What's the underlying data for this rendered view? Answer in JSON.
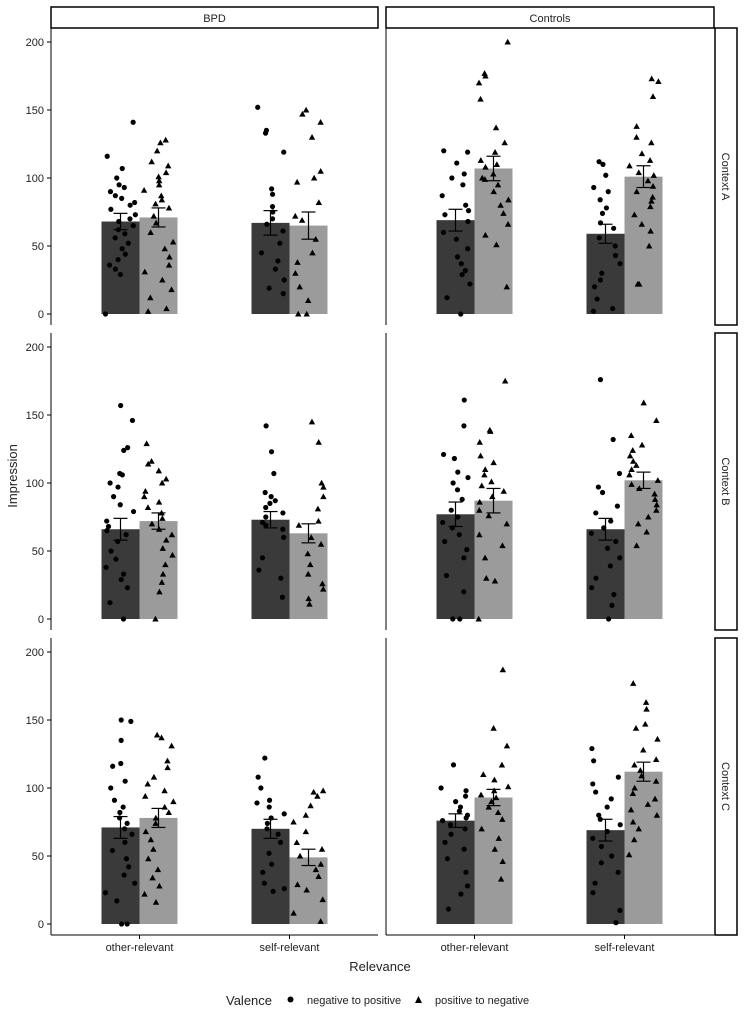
{
  "chart_data": {
    "type": "bar",
    "xlabel": "Relevance",
    "ylabel": "Impression",
    "ylim": [
      0,
      210
    ],
    "yticks": [
      0,
      50,
      100,
      150,
      200
    ],
    "categories": [
      "other-relevant",
      "self-relevant"
    ],
    "column_facets": [
      "BPD",
      "Controls"
    ],
    "row_facets": [
      "Context A",
      "Context B",
      "Context C"
    ],
    "legend": {
      "title": "Valence",
      "position": "bottom",
      "entries": [
        {
          "label": "negative to positive",
          "marker": "circle",
          "color": "#3a3a3a"
        },
        {
          "label": "positive to negative",
          "marker": "triangle",
          "color": "#9b9b9b"
        }
      ]
    },
    "grid": false,
    "error_bars": true,
    "panels": [
      {
        "row": "Context A",
        "col": "BPD",
        "bars": [
          {
            "category": "other-relevant",
            "valence": "negative to positive",
            "mean": 68,
            "se": 6,
            "points": [
              141,
              116,
              107,
              100,
              95,
              93,
              90,
              87,
              85,
              82,
              80,
              77,
              73,
              70,
              68,
              65,
              62,
              59,
              56,
              52,
              48,
              44,
              40,
              36,
              33,
              29,
              0
            ]
          },
          {
            "category": "other-relevant",
            "valence": "positive to negative",
            "mean": 71,
            "se": 7,
            "points": [
              128,
              126,
              120,
              112,
              109,
              104,
              101,
              98,
              95,
              91,
              87,
              84,
              81,
              78,
              72,
              67,
              60,
              53,
              48,
              42,
              36,
              31,
              25,
              18,
              12,
              4,
              2
            ]
          },
          {
            "category": "self-relevant",
            "valence": "negative to positive",
            "mean": 67,
            "se": 9,
            "points": [
              152,
              135,
              133,
              119,
              92,
              88,
              79,
              75,
              70,
              66,
              61,
              52,
              45,
              39,
              33,
              25,
              19,
              15
            ]
          },
          {
            "category": "self-relevant",
            "valence": "positive to negative",
            "mean": 65,
            "se": 10,
            "points": [
              150,
              147,
              141,
              130,
              105,
              100,
              97,
              82,
              72,
              69,
              55,
              45,
              38,
              30,
              20,
              10,
              0,
              0
            ]
          }
        ]
      },
      {
        "row": "Context A",
        "col": "Controls",
        "bars": [
          {
            "category": "other-relevant",
            "valence": "negative to positive",
            "mean": 69,
            "se": 8,
            "points": [
              120,
              119,
              111,
              103,
              100,
              95,
              87,
              80,
              76,
              73,
              68,
              60,
              55,
              48,
              42,
              37,
              32,
              29,
              22,
              12,
              0
            ]
          },
          {
            "category": "other-relevant",
            "valence": "positive to negative",
            "mean": 107,
            "se": 9,
            "points": [
              200,
              177,
              175,
              170,
              158,
              137,
              126,
              119,
              113,
              110,
              108,
              103,
              100,
              99,
              95,
              90,
              84,
              80,
              74,
              66,
              58,
              51,
              20
            ]
          },
          {
            "category": "self-relevant",
            "valence": "negative to positive",
            "mean": 59,
            "se": 7,
            "points": [
              112,
              110,
              102,
              93,
              90,
              84,
              78,
              74,
              67,
              63,
              56,
              50,
              43,
              37,
              30,
              25,
              20,
              11,
              4,
              2
            ]
          },
          {
            "category": "self-relevant",
            "valence": "positive to negative",
            "mean": 101,
            "se": 8,
            "points": [
              173,
              171,
              160,
              138,
              130,
              126,
              118,
              113,
              109,
              104,
              102,
              98,
              94,
              90,
              86,
              83,
              79,
              73,
              66,
              61,
              50,
              22,
              22
            ]
          }
        ]
      },
      {
        "row": "Context B",
        "col": "BPD",
        "bars": [
          {
            "category": "other-relevant",
            "valence": "negative to positive",
            "mean": 66,
            "se": 8,
            "points": [
              157,
              146,
              126,
              124,
              107,
              106,
              100,
              97,
              90,
              84,
              79,
              72,
              68,
              65,
              62,
              57,
              50,
              44,
              38,
              33,
              29,
              23,
              12,
              0
            ]
          },
          {
            "category": "other-relevant",
            "valence": "positive to negative",
            "mean": 72,
            "se": 6,
            "points": [
              129,
              116,
              114,
              109,
              103,
              100,
              94,
              90,
              86,
              82,
              78,
              74,
              70,
              66,
              62,
              58,
              52,
              47,
              40,
              33,
              27,
              20,
              0
            ]
          },
          {
            "category": "self-relevant",
            "valence": "negative to positive",
            "mean": 73,
            "se": 6,
            "points": [
              142,
              123,
              107,
              93,
              90,
              87,
              85,
              82,
              78,
              75,
              71,
              69,
              66,
              60,
              45,
              36,
              30,
              16
            ]
          },
          {
            "category": "self-relevant",
            "valence": "positive to negative",
            "mean": 63,
            "se": 7,
            "points": [
              145,
              130,
              100,
              97,
              90,
              81,
              72,
              69,
              60,
              55,
              48,
              40,
              33,
              26,
              22,
              15,
              11
            ]
          }
        ]
      },
      {
        "row": "Context B",
        "col": "Controls",
        "bars": [
          {
            "category": "other-relevant",
            "valence": "negative to positive",
            "mean": 77,
            "se": 9,
            "points": [
              161,
              142,
              121,
              118,
              108,
              104,
              100,
              95,
              88,
              80,
              75,
              71,
              67,
              62,
              57,
              51,
              45,
              32,
              20,
              0,
              0
            ]
          },
          {
            "category": "other-relevant",
            "valence": "positive to negative",
            "mean": 87,
            "se": 9,
            "points": [
              175,
              139,
              138,
              130,
              120,
              115,
              110,
              106,
              101,
              98,
              94,
              90,
              86,
              80,
              76,
              70,
              62,
              54,
              45,
              30,
              28,
              0
            ]
          },
          {
            "category": "self-relevant",
            "valence": "negative to positive",
            "mean": 66,
            "se": 8,
            "points": [
              176,
              132,
              107,
              97,
              93,
              83,
              78,
              72,
              67,
              63,
              57,
              52,
              45,
              39,
              30,
              23,
              18,
              10,
              0
            ]
          },
          {
            "category": "self-relevant",
            "valence": "positive to negative",
            "mean": 102,
            "se": 6,
            "points": [
              159,
              146,
              135,
              128,
              124,
              120,
              116,
              113,
              110,
              106,
              102,
              99,
              96,
              92,
              88,
              84,
              80,
              75,
              70,
              64,
              54
            ]
          }
        ]
      },
      {
        "row": "Context C",
        "col": "BPD",
        "bars": [
          {
            "category": "other-relevant",
            "valence": "negative to positive",
            "mean": 71,
            "se": 8,
            "points": [
              150,
              149,
              135,
              118,
              116,
              105,
              100,
              91,
              86,
              82,
              78,
              74,
              70,
              66,
              60,
              54,
              48,
              42,
              36,
              30,
              23,
              17,
              0,
              0
            ]
          },
          {
            "category": "other-relevant",
            "valence": "positive to negative",
            "mean": 78,
            "se": 7,
            "points": [
              139,
              137,
              131,
              120,
              115,
              108,
              103,
              98,
              94,
              90,
              86,
              82,
              78,
              74,
              68,
              62,
              55,
              48,
              40,
              34,
              28,
              22,
              16
            ]
          },
          {
            "category": "self-relevant",
            "valence": "negative to positive",
            "mean": 70,
            "se": 7,
            "points": [
              122,
              108,
              100,
              91,
              89,
              86,
              81,
              78,
              74,
              70,
              66,
              60,
              52,
              44,
              38,
              30,
              26,
              24
            ]
          },
          {
            "category": "self-relevant",
            "valence": "positive to negative",
            "mean": 49,
            "se": 6,
            "points": [
              98,
              97,
              94,
              87,
              80,
              75,
              68,
              60,
              55,
              50,
              44,
              40,
              35,
              29,
              25,
              18,
              8,
              2
            ]
          }
        ]
      },
      {
        "row": "Context C",
        "col": "Controls",
        "bars": [
          {
            "category": "other-relevant",
            "valence": "negative to positive",
            "mean": 76,
            "se": 5,
            "points": [
              117,
              100,
              98,
              94,
              90,
              86,
              83,
              80,
              78,
              76,
              73,
              70,
              66,
              60,
              55,
              48,
              38,
              28,
              22,
              11
            ]
          },
          {
            "category": "other-relevant",
            "valence": "positive to negative",
            "mean": 93,
            "se": 6,
            "points": [
              187,
              144,
              131,
              117,
              110,
              106,
              101,
              98,
              95,
              93,
              90,
              86,
              82,
              77,
              70,
              63,
              55,
              46,
              33
            ]
          },
          {
            "category": "self-relevant",
            "valence": "negative to positive",
            "mean": 69,
            "se": 8,
            "points": [
              129,
              120,
              108,
              103,
              97,
              92,
              86,
              80,
              77,
              73,
              68,
              63,
              57,
              50,
              45,
              38,
              30,
              23,
              10,
              1
            ]
          },
          {
            "category": "self-relevant",
            "valence": "positive to negative",
            "mean": 112,
            "se": 7,
            "points": [
              177,
              163,
              158,
              147,
              144,
              136,
              128,
              121,
              117,
              113,
              109,
              105,
              100,
              96,
              92,
              88,
              84,
              80,
              75,
              70,
              62,
              51
            ]
          }
        ]
      }
    ]
  }
}
